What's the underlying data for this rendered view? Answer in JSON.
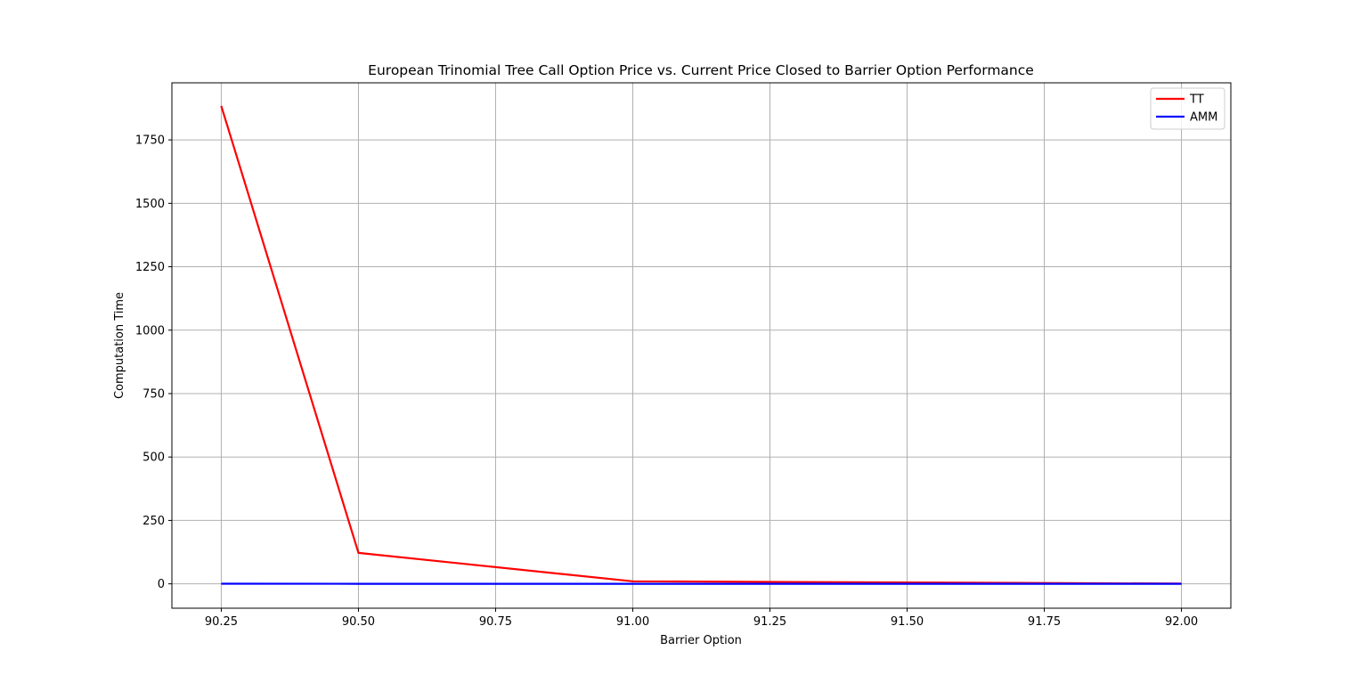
{
  "chart_data": {
    "type": "line",
    "title": "European Trinomial Tree Call Option Price vs. Current Price Closed to Barrier Option Performance",
    "xlabel": "Barrier Option",
    "ylabel": "Computation Time",
    "xlim": [
      90.16,
      92.09
    ],
    "ylim": [
      -96,
      1975
    ],
    "xticks": [
      90.25,
      90.5,
      90.75,
      91.0,
      91.25,
      91.5,
      91.75,
      92.0
    ],
    "xtick_labels": [
      "90.25",
      "90.50",
      "90.75",
      "91.00",
      "91.25",
      "91.50",
      "91.75",
      "92.00"
    ],
    "yticks": [
      0,
      250,
      500,
      750,
      1000,
      1250,
      1500,
      1750
    ],
    "ytick_labels": [
      "0",
      "250",
      "500",
      "750",
      "1000",
      "1250",
      "1500",
      "1750"
    ],
    "grid": true,
    "legend_position": "top-right",
    "series": [
      {
        "name": "TT",
        "color": "#ff0000",
        "x": [
          90.25,
          90.5,
          91.0,
          92.0
        ],
        "y": [
          1884,
          122,
          10,
          1
        ]
      },
      {
        "name": "AMM",
        "color": "#0000ff",
        "x": [
          90.25,
          90.5,
          91.0,
          92.0
        ],
        "y": [
          0.5,
          0.3,
          0.2,
          0.1
        ]
      }
    ]
  }
}
